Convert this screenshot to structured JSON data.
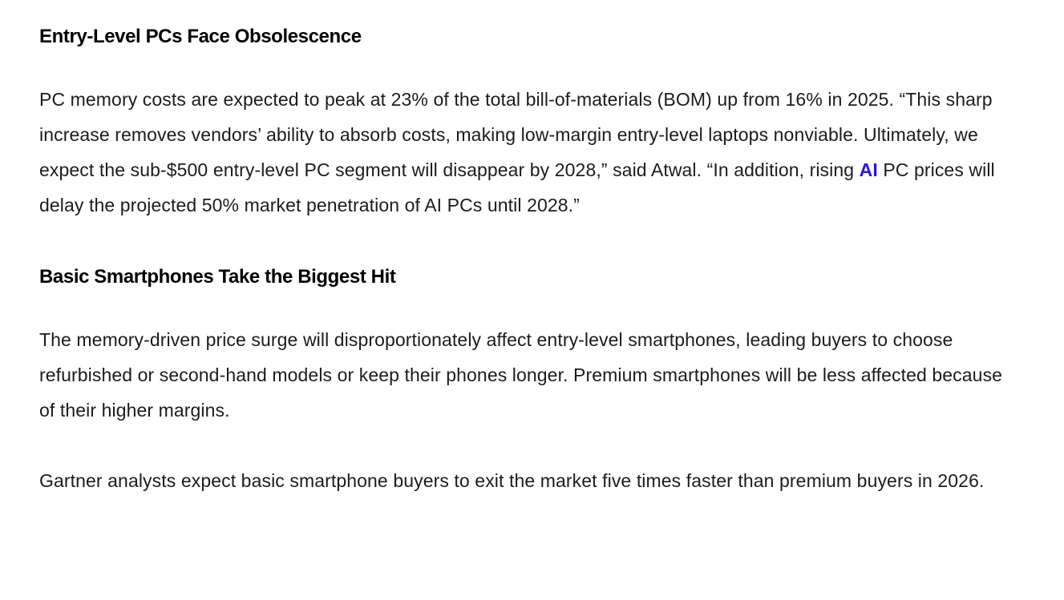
{
  "page": {
    "background_color": "#ffffff",
    "body_text_color": "#1c1c1c",
    "heading_color": "#000000",
    "link_color": "#2617e6"
  },
  "article": {
    "section1": {
      "heading": "Entry-Level PCs Face Obsolescence",
      "paragraph": {
        "before_link": "PC memory costs are expected to peak at 23% of the total bill-of-materials (BOM) up from 16% in 2025. “This sharp increase removes vendors’ ability to absorb costs, making low-margin entry-level laptops nonviable. Ultimately, we expect the sub-$500 entry-level PC segment will disappear by 2028,” said Atwal. “In addition, rising ",
        "link_text": "AI",
        "after_link": " PC prices will delay the projected 50% market penetration of AI PCs until 2028.”"
      }
    },
    "section2": {
      "heading": "Basic Smartphones Take the Biggest Hit",
      "paragraph1": "The memory-driven price surge will disproportionately affect entry-level smartphones, leading buyers to choose refurbished or second-hand models or keep their phones longer. Premium smartphones will be less affected because of their higher margins.",
      "paragraph2": "Gartner analysts expect basic smartphone buyers to exit the market five times faster than premium buyers in 2026."
    }
  }
}
